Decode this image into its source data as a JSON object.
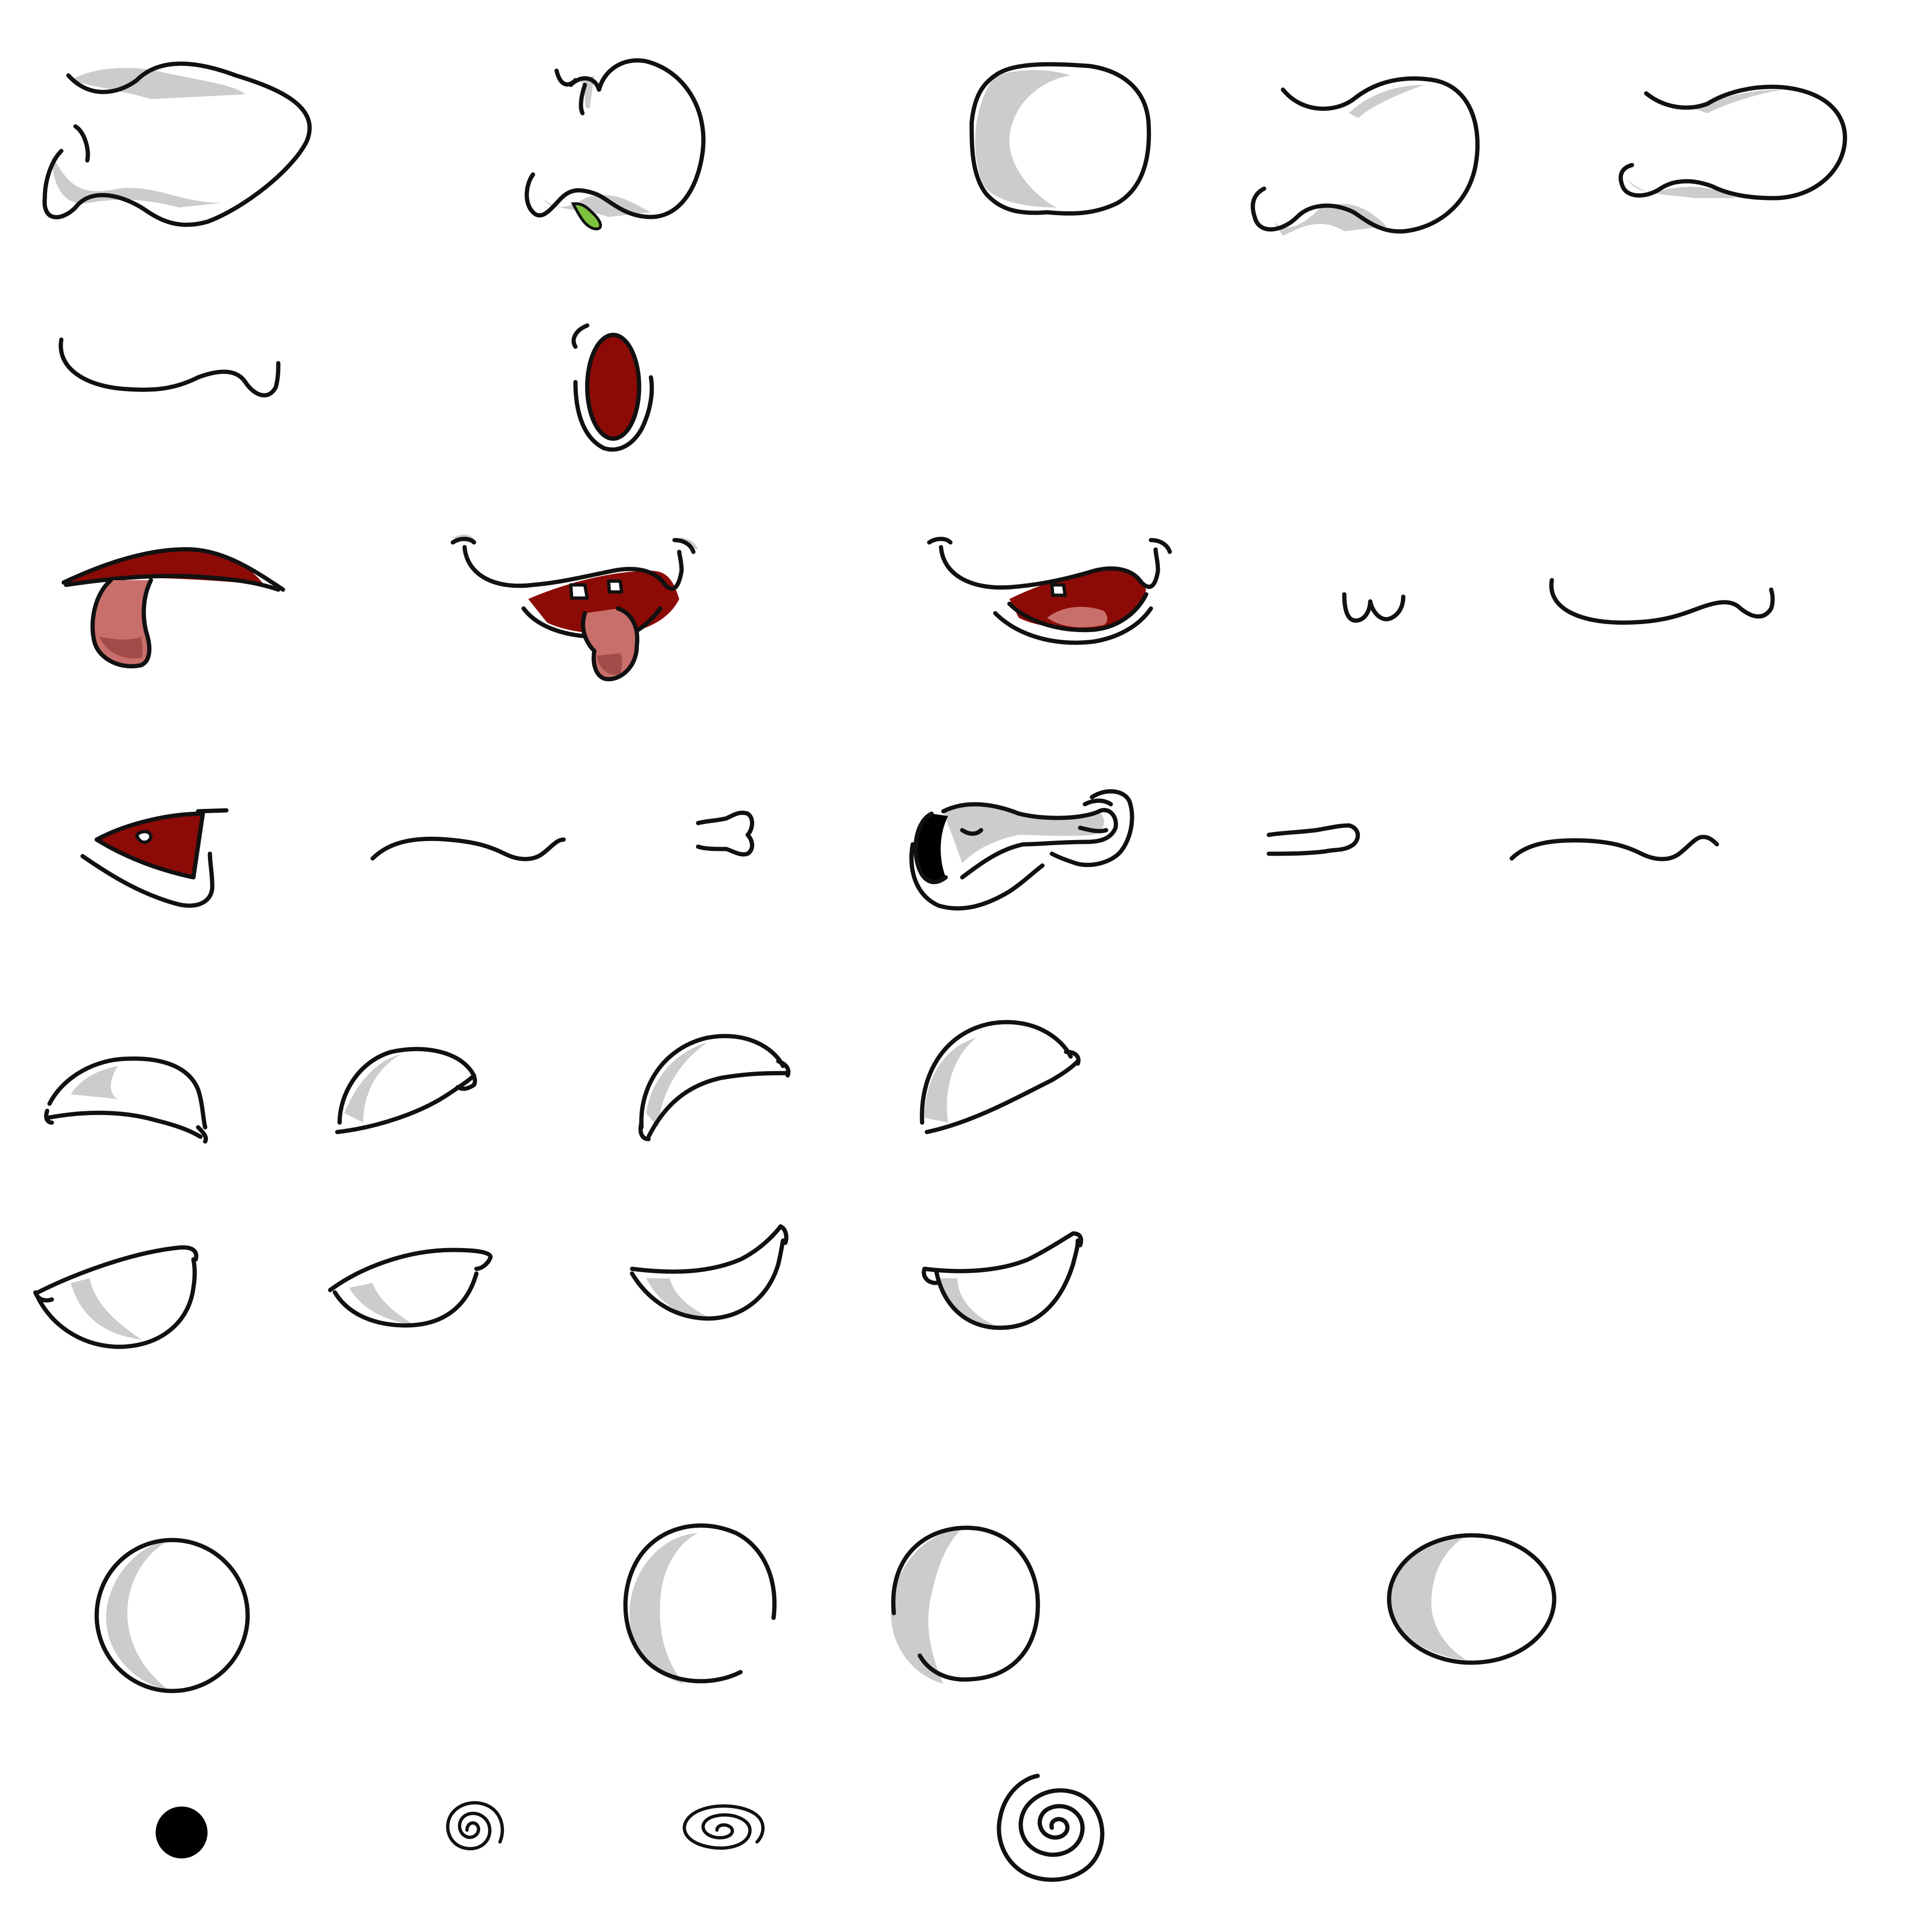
{
  "canvas": {
    "background": "#ffffff"
  },
  "palette": {
    "ink": "#111111",
    "shade": "#cccccc",
    "mouth": "#8c0b06",
    "tongue": "#c96f6b",
    "drool": "#7cc23e"
  },
  "rows": [
    {
      "kind": "wide-open-mouths",
      "count": 5
    },
    {
      "kind": "small-mouths",
      "count": 2
    },
    {
      "kind": "tongue-mouths",
      "count": 5
    },
    {
      "kind": "angled-mouths",
      "count": 6
    },
    {
      "kind": "upper-eyelids",
      "count": 4
    },
    {
      "kind": "lower-eyelids",
      "count": 4
    },
    {
      "kind": "open-eyes",
      "count": 4
    },
    {
      "kind": "pupils-and-spirals",
      "count": 4
    }
  ]
}
